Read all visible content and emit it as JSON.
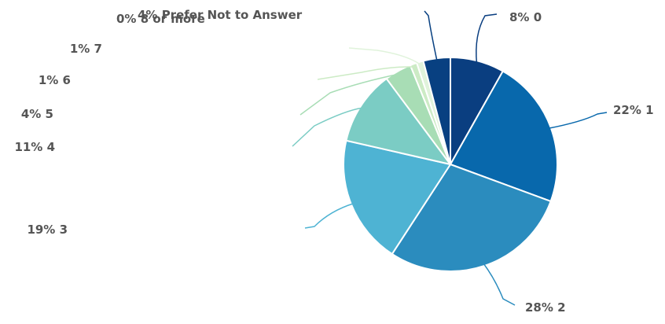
{
  "chart_data": {
    "type": "pie",
    "title": "",
    "slices": [
      {
        "category": "0",
        "value": 8,
        "label": "8% 0",
        "color": "#0a3e80"
      },
      {
        "category": "1",
        "value": 22,
        "label": "22% 1",
        "color": "#0868ac"
      },
      {
        "category": "2",
        "value": 28,
        "label": "28% 2",
        "color": "#2b8cbe"
      },
      {
        "category": "3",
        "value": 19,
        "label": "19% 3",
        "color": "#4eb3d3"
      },
      {
        "category": "4",
        "value": 11,
        "label": "11% 4",
        "color": "#7bccc4"
      },
      {
        "category": "5",
        "value": 4,
        "label": "4% 5",
        "color": "#a8ddb5"
      },
      {
        "category": "6",
        "value": 1,
        "label": "1% 6",
        "color": "#ccebc5"
      },
      {
        "category": "7",
        "value": 1,
        "label": "1% 7",
        "color": "#e0f3db"
      },
      {
        "category": "8 or more",
        "value": 0,
        "label": "0% 8 or more",
        "color": "#f0f9e8"
      },
      {
        "category": "Prefer Not to Answer",
        "value": 4,
        "label": "4% Prefer Not to Answer",
        "color": "#084081"
      }
    ],
    "legend": "none",
    "label_color": "#555555"
  }
}
